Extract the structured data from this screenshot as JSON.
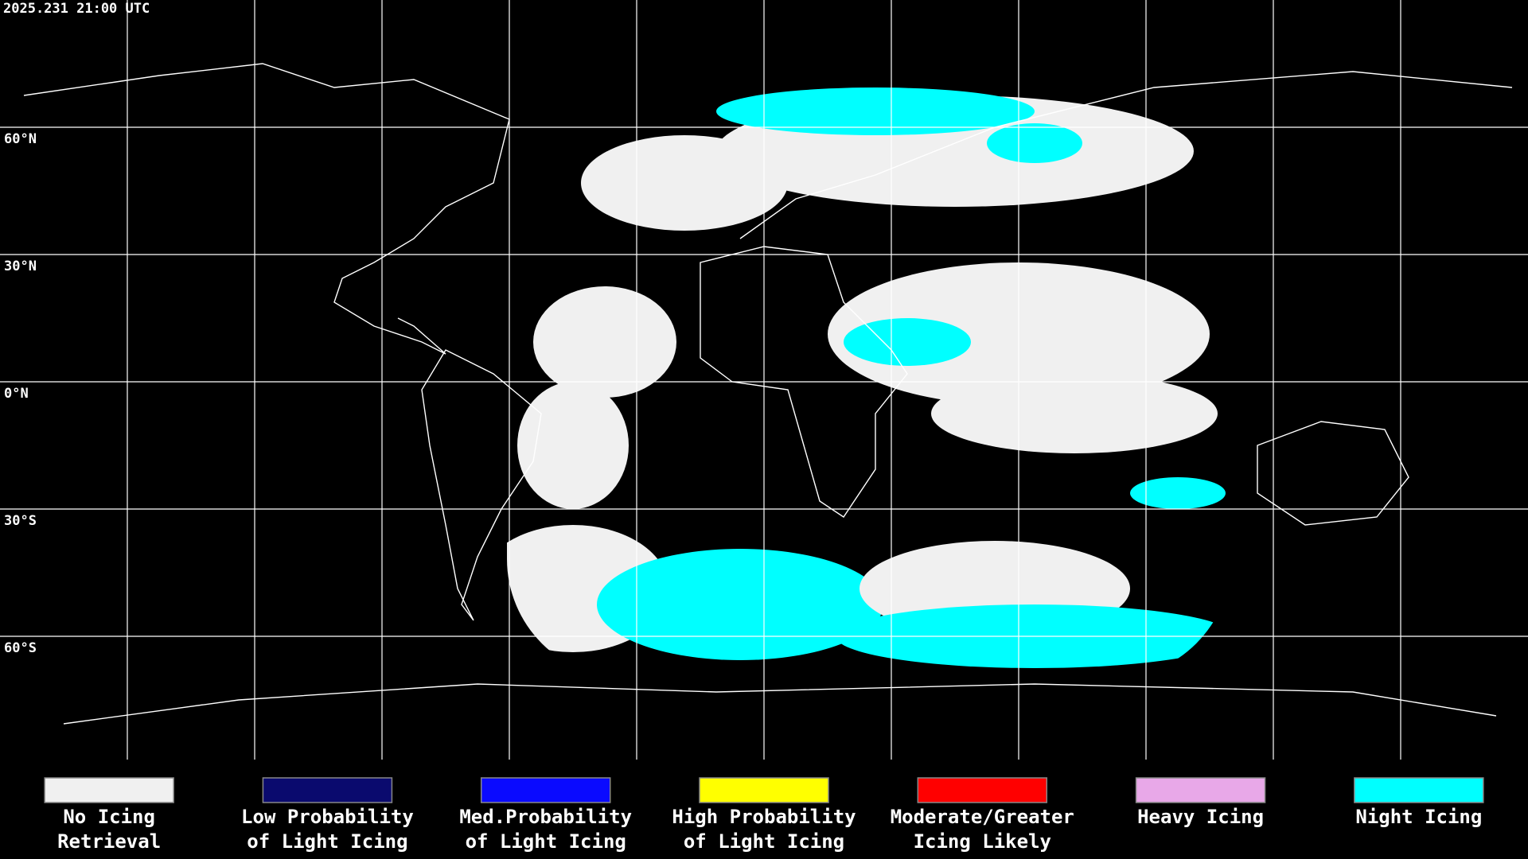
{
  "timestamp": "2025.231 21:00 UTC",
  "latitude_labels": [
    "60°N",
    "30°N",
    "0°N",
    "30°S",
    "60°S"
  ],
  "legend": [
    {
      "label_lines": [
        "No Icing",
        "Retrieval"
      ],
      "color": "#f0f0f0"
    },
    {
      "label_lines": [
        "Low Probability",
        "of Light Icing"
      ],
      "color": "#0a0a6e"
    },
    {
      "label_lines": [
        "Med.Probability",
        "of Light Icing"
      ],
      "color": "#0a0aff"
    },
    {
      "label_lines": [
        "High Probability",
        "of Light Icing"
      ],
      "color": "#ffff00"
    },
    {
      "label_lines": [
        "Moderate/Greater",
        "Icing Likely"
      ],
      "color": "#ff0000"
    },
    {
      "label_lines": [
        "Heavy Icing"
      ],
      "color": "#e8a8e8"
    },
    {
      "label_lines": [
        "Night Icing"
      ],
      "color": "#00ffff"
    }
  ]
}
